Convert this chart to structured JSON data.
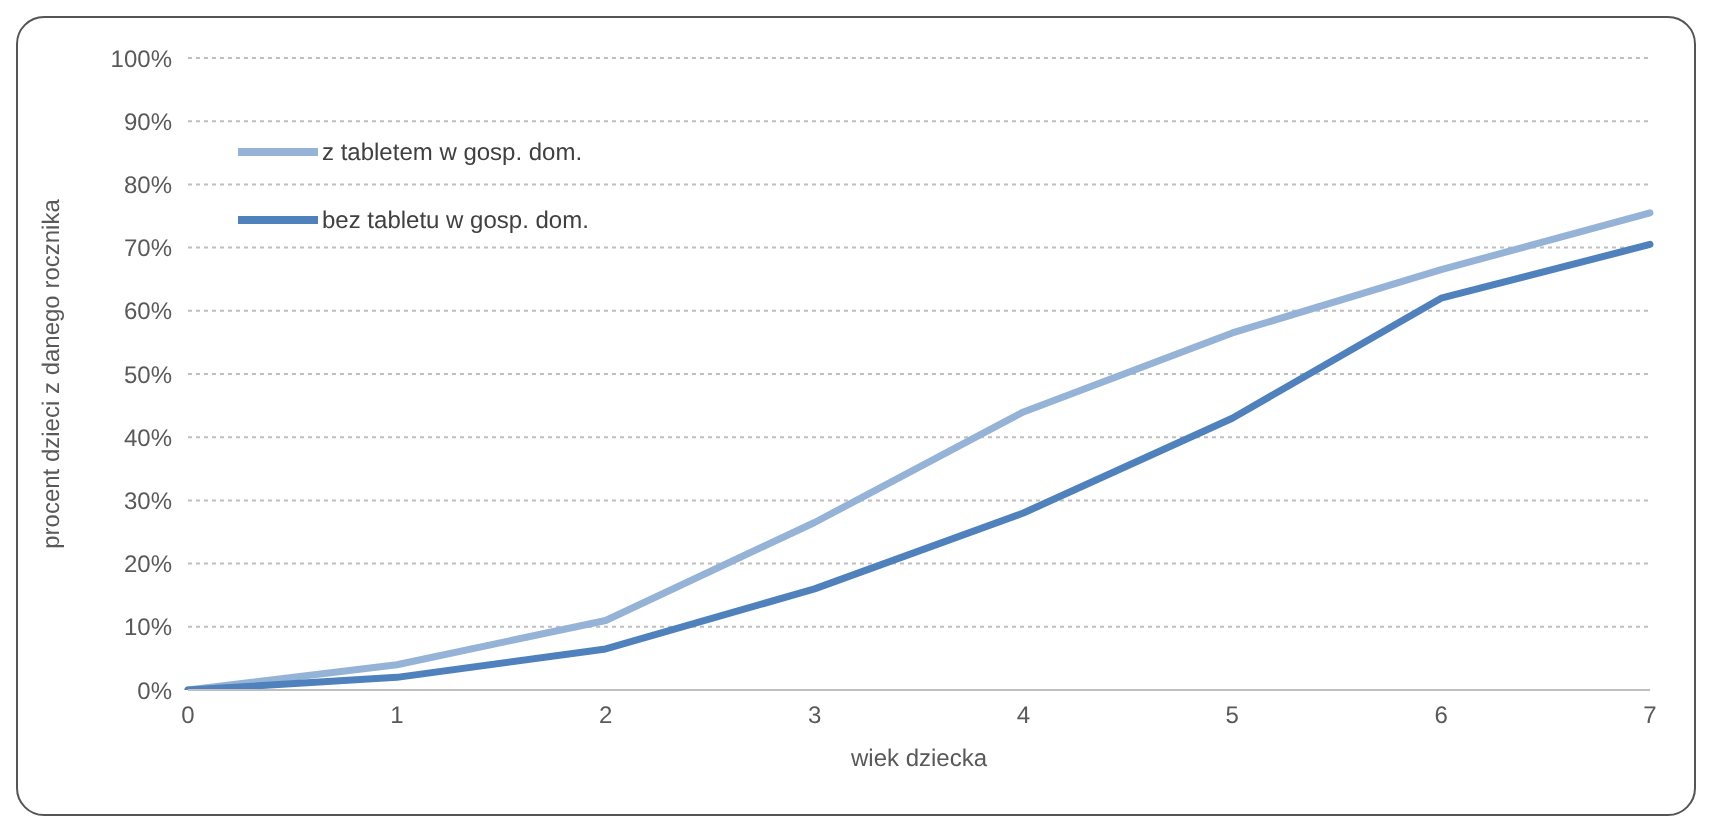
{
  "chart_data": {
    "type": "line",
    "xlabel": "wiek dziecka",
    "ylabel": "procent dzieci z danego rocznika",
    "categories": [
      "0",
      "1",
      "2",
      "3",
      "4",
      "5",
      "6",
      "7"
    ],
    "series": [
      {
        "name": "z tabletem w gosp. dom.",
        "color": "#95b3d7",
        "values": [
          0,
          4,
          11,
          26.5,
          44,
          56.5,
          66.5,
          75.5
        ]
      },
      {
        "name": "bez tabletu w gosp. dom.",
        "color": "#4f81bd",
        "values": [
          0,
          2,
          6.5,
          16,
          28,
          43,
          62,
          70.5
        ]
      }
    ],
    "ylim": [
      0,
      100
    ],
    "yticks": [
      {
        "value": 0,
        "label": "0%"
      },
      {
        "value": 10,
        "label": "10%"
      },
      {
        "value": 20,
        "label": "20%"
      },
      {
        "value": 30,
        "label": "30%"
      },
      {
        "value": 40,
        "label": "40%"
      },
      {
        "value": 50,
        "label": "50%"
      },
      {
        "value": 60,
        "label": "60%"
      },
      {
        "value": 70,
        "label": "70%"
      },
      {
        "value": 80,
        "label": "80%"
      },
      {
        "value": 90,
        "label": "90%"
      },
      {
        "value": 100,
        "label": "100%"
      }
    ],
    "grid": "y",
    "legend": "top left",
    "marker": "none",
    "line_style": "solid"
  }
}
